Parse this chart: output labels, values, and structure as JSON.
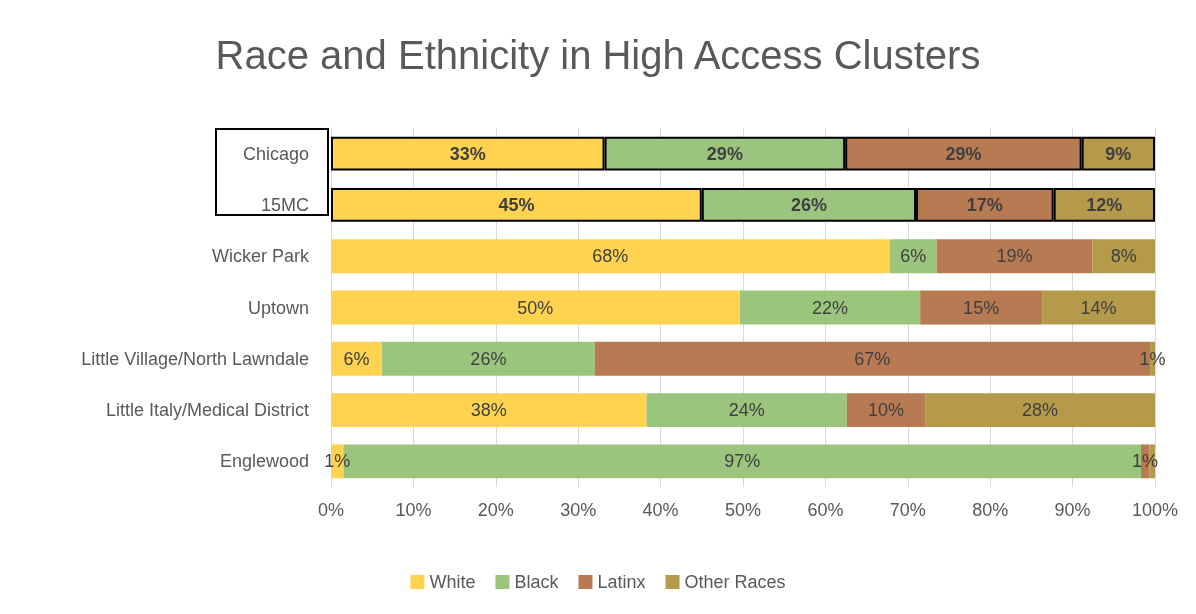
{
  "chart_data": {
    "type": "bar",
    "orientation": "horizontal",
    "stacked": true,
    "title": "Race and Ethnicity in High Access Clusters",
    "categories": [
      "Chicago",
      "15MC",
      "Wicker Park",
      "Uptown",
      "Little Village/North Lawndale",
      "Little Italy/Medical District",
      "Englewood"
    ],
    "series": [
      {
        "name": "White",
        "color": "#ffd24f",
        "values": [
          33.2,
          45.0,
          67.8,
          49.6,
          6.2,
          38.3,
          1.5
        ],
        "value_labels": [
          "33%",
          "45%",
          "68%",
          "50%",
          "6%",
          "38%",
          "1%"
        ]
      },
      {
        "name": "Black",
        "color": "#9bc57d",
        "values": [
          29.2,
          26.0,
          5.7,
          21.9,
          25.8,
          24.3,
          96.8
        ],
        "value_labels": [
          "29%",
          "26%",
          "6%",
          "22%",
          "26%",
          "24%",
          "97%"
        ]
      },
      {
        "name": "Latinx",
        "color": "#b87a52",
        "values": [
          28.7,
          16.7,
          18.9,
          14.8,
          67.4,
          9.5,
          1.0
        ],
        "value_labels": [
          "29%",
          "17%",
          "19%",
          "15%",
          "67%",
          "10%",
          "1%"
        ]
      },
      {
        "name": "Other Races",
        "color": "#b59a4b",
        "values": [
          8.9,
          12.3,
          7.6,
          13.7,
          0.6,
          27.9,
          0.7
        ],
        "value_labels": [
          "9%",
          "12%",
          "8%",
          "14%",
          "1%",
          "28%",
          null
        ]
      }
    ],
    "xlim": [
      0,
      100
    ],
    "xticks": [
      {
        "value": 0,
        "label": "0%"
      },
      {
        "value": 10,
        "label": "10%"
      },
      {
        "value": 20,
        "label": "20%"
      },
      {
        "value": 30,
        "label": "30%"
      },
      {
        "value": 40,
        "label": "40%"
      },
      {
        "value": 50,
        "label": "50%"
      },
      {
        "value": 60,
        "label": "60%"
      },
      {
        "value": 70,
        "label": "70%"
      },
      {
        "value": 80,
        "label": "80%"
      },
      {
        "value": 90,
        "label": "90%"
      },
      {
        "value": 100,
        "label": "100%"
      }
    ],
    "grid": "x",
    "legend": "bottom"
  }
}
